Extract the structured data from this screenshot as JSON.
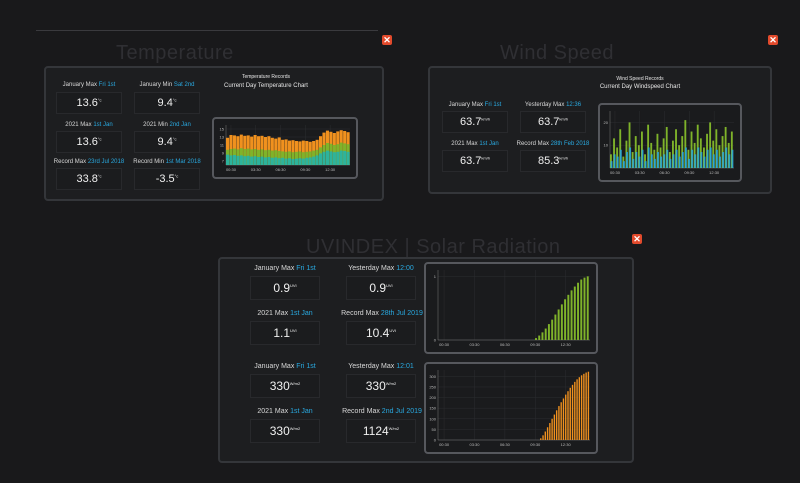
{
  "temperature": {
    "title": "Temperature",
    "chart_title": "Temperature Records",
    "chart_subtitle": "Current Day Temperature Chart",
    "stats": [
      {
        "label": "January Max",
        "hl": "Fri 1st",
        "value": "13.6",
        "unit": "°c"
      },
      {
        "label": "January Min",
        "hl": "Sat 2nd",
        "value": "9.4",
        "unit": "°c"
      },
      {
        "label": "2021 Max",
        "hl": "1st Jan",
        "value": "13.6",
        "unit": "°c"
      },
      {
        "label": "2021 Min",
        "hl": "2nd Jan",
        "value": "9.4",
        "unit": "°c"
      },
      {
        "label": "Record Max",
        "hl": "23rd Jul 2018",
        "value": "33.8",
        "unit": "°c"
      },
      {
        "label": "Record Min",
        "hl": "1st Mar 2018",
        "value": "-3.5",
        "unit": "°c"
      }
    ]
  },
  "wind": {
    "title": "Wind Speed",
    "chart_title": "Wind Speed Records",
    "chart_subtitle": "Current Day Windspeed Chart",
    "stats": [
      {
        "label": "January Max",
        "hl": "Fri 1st",
        "value": "63.7",
        "unit": "km/h"
      },
      {
        "label": "Yesterday Max",
        "hl": "12:36",
        "value": "63.7",
        "unit": "km/h"
      },
      {
        "label": "2021 Max",
        "hl": "1st Jan",
        "value": "63.7",
        "unit": "km/h"
      },
      {
        "label": "Record Max",
        "hl": "28th Feb 2018",
        "value": "85.3",
        "unit": "km/h"
      }
    ]
  },
  "uv": {
    "title": "UVINDEX | Solar Radiation",
    "stats": [
      {
        "label": "January Max",
        "hl": "Fri 1st",
        "value": "0.9",
        "unit": "UVI"
      },
      {
        "label": "Yesterday Max",
        "hl": "12:00",
        "value": "0.9",
        "unit": "UVI"
      },
      {
        "label": "2021 Max",
        "hl": "1st Jan",
        "value": "1.1",
        "unit": "UVI"
      },
      {
        "label": "Record Max",
        "hl": "28th Jul 2019",
        "value": "10.4",
        "unit": "UVI"
      },
      {
        "label": "January Max",
        "hl": "Fri 1st",
        "value": "330",
        "unit": "W/m2"
      },
      {
        "label": "Yesterday Max",
        "hl": "12:01",
        "value": "330",
        "unit": "W/m2"
      },
      {
        "label": "2021 Max",
        "hl": "1st Jan",
        "value": "330",
        "unit": "W/m2"
      },
      {
        "label": "Record Max",
        "hl": "2nd Jul 2019",
        "value": "1124",
        "unit": "W/m2"
      }
    ]
  },
  "colors": {
    "accent": "#29a9e0",
    "orange": "#f0911e",
    "green": "#7fb32a",
    "teal": "#2db39c",
    "close": "#e24a2c"
  },
  "icons": {
    "close": "close-icon"
  },
  "close_glyph": "✕",
  "chart_data": [
    {
      "type": "area",
      "x_ticks": [
        "00:30",
        "03:30",
        "06:30",
        "09:30",
        "12:30"
      ],
      "y_ticks": [
        "7",
        "9",
        "11",
        "13",
        "15"
      ],
      "ylim": [
        6,
        16
      ],
      "series": [
        {
          "values": [
            12.8,
            13.5,
            13.4,
            13.2,
            13.6,
            13.3,
            13.4,
            13.1,
            13.5,
            13.2,
            13.3,
            13.0,
            13.2,
            12.8,
            12.6,
            12.9,
            12.3,
            12.4,
            12.1,
            12.2,
            12.0,
            11.9,
            12.1,
            12.0,
            11.8,
            12.0,
            12.3,
            13.2,
            14.1,
            14.6,
            14.3,
            14.0,
            14.4,
            14.7,
            14.5,
            14.2
          ]
        },
        {
          "values": [
            9.8,
            10.0,
            10.1,
            9.9,
            10.2,
            10.0,
            10.1,
            9.9,
            10.0,
            9.8,
            9.9,
            9.7,
            9.8,
            9.6,
            9.7,
            9.5,
            9.4,
            9.3,
            9.4,
            9.2,
            9.3,
            9.4,
            9.2,
            9.3,
            9.4,
            9.6,
            9.8,
            10.4,
            11.0,
            11.5,
            11.3,
            11.0,
            11.2,
            11.6,
            11.4,
            11.2
          ]
        },
        {
          "values": [
            8.6,
            8.4,
            8.5,
            8.3,
            8.4,
            8.2,
            8.3,
            8.1,
            8.2,
            8.0,
            8.1,
            7.9,
            8.0,
            7.8,
            7.9,
            7.7,
            7.8,
            7.6,
            7.7,
            7.5,
            7.6,
            7.7,
            7.6,
            7.8,
            7.9,
            8.1,
            8.4,
            8.9,
            9.3,
            9.6,
            9.4,
            9.2,
            9.3,
            9.6,
            9.5,
            9.3
          ]
        }
      ]
    },
    {
      "type": "bar",
      "x_ticks": [
        "00:30",
        "03:30",
        "06:30",
        "09:30",
        "12:30"
      ],
      "y_ticks": [
        "10",
        "20"
      ],
      "ylim": [
        0,
        25
      ],
      "series": [
        {
          "values": [
            6,
            13,
            9,
            17,
            5,
            12,
            20,
            7,
            14,
            10,
            16,
            6,
            19,
            11,
            8,
            15,
            9,
            13,
            18,
            7,
            12,
            17,
            10,
            14,
            21,
            8,
            16,
            11,
            19,
            13,
            9,
            15,
            20,
            12,
            17,
            10,
            14,
            18,
            11,
            16
          ]
        },
        {
          "values": [
            3,
            6,
            5,
            8,
            3,
            7,
            9,
            4,
            7,
            5,
            8,
            3,
            9,
            6,
            4,
            7,
            5,
            6,
            8,
            4,
            6,
            8,
            5,
            7,
            9,
            4,
            8,
            6,
            9,
            7,
            5,
            8,
            9,
            6,
            8,
            5,
            7,
            9,
            6,
            8
          ]
        }
      ]
    },
    {
      "type": "bar",
      "x_ticks": [
        "00:30",
        "03:30",
        "06:30",
        "09:30",
        "12:30"
      ],
      "y_ticks": [
        "0",
        "1"
      ],
      "ylim": [
        0,
        1.1
      ],
      "values": [
        0,
        0,
        0,
        0,
        0,
        0,
        0,
        0,
        0,
        0,
        0,
        0,
        0,
        0,
        0,
        0,
        0,
        0,
        0,
        0,
        0,
        0,
        0,
        0,
        0,
        0,
        0,
        0,
        0,
        0,
        0.03,
        0.07,
        0.12,
        0.18,
        0.25,
        0.32,
        0.4,
        0.48,
        0.56,
        0.64,
        0.71,
        0.78,
        0.84,
        0.9,
        0.95,
        0.98,
        1.0
      ]
    },
    {
      "type": "bar",
      "x_ticks": [
        "00:30",
        "03:30",
        "06:30",
        "09:30",
        "12:30"
      ],
      "y_ticks": [
        "0",
        "50",
        "100",
        "150",
        "200",
        "250",
        "300"
      ],
      "ylim": [
        0,
        330
      ],
      "values": [
        0,
        0,
        0,
        0,
        0,
        0,
        0,
        0,
        0,
        0,
        0,
        0,
        0,
        0,
        0,
        0,
        0,
        0,
        0,
        0,
        0,
        0,
        0,
        0,
        0,
        0,
        0,
        0,
        0,
        0,
        0,
        0,
        0,
        0,
        0,
        0,
        0,
        0,
        0,
        0,
        0,
        0,
        0,
        0,
        0,
        8,
        22,
        40,
        60,
        80,
        100,
        120,
        140,
        160,
        178,
        196,
        214,
        230,
        246,
        260,
        274,
        286,
        296,
        305,
        312,
        318,
        322
      ]
    }
  ]
}
